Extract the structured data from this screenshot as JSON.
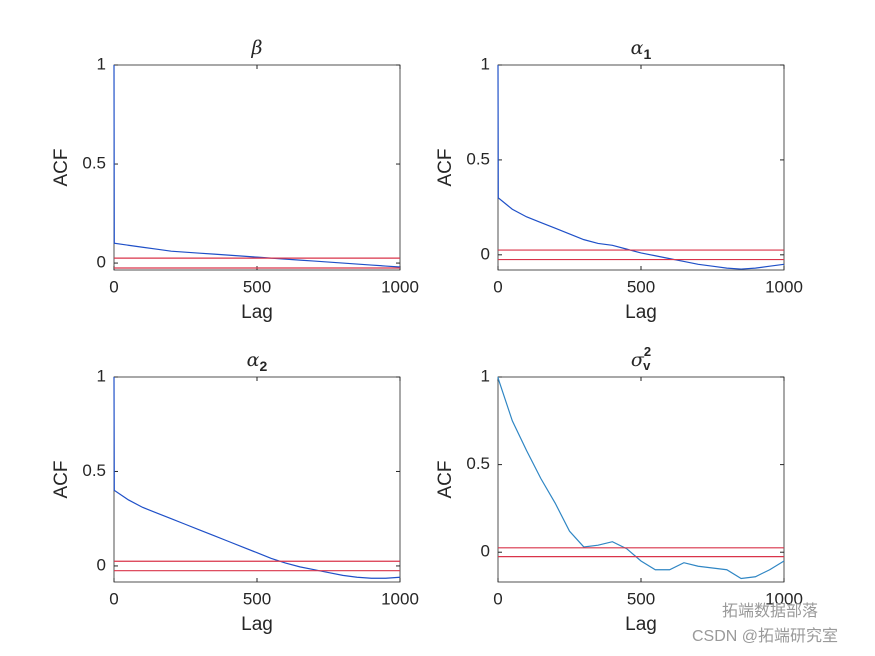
{
  "chart_data": [
    {
      "type": "line",
      "title": "β",
      "xlabel": "Lag",
      "ylabel": "ACF",
      "x": [
        0,
        1,
        50,
        100,
        150,
        200,
        250,
        300,
        350,
        400,
        450,
        500,
        550,
        600,
        650,
        700,
        750,
        800,
        850,
        900,
        950,
        1000
      ],
      "values": [
        1,
        0.1,
        0.09,
        0.08,
        0.07,
        0.06,
        0.055,
        0.05,
        0.045,
        0.04,
        0.035,
        0.03,
        0.025,
        0.02,
        0.015,
        0.01,
        0.005,
        0,
        -0.005,
        -0.01,
        -0.015,
        -0.02
      ],
      "color": "#1f50c8",
      "xlim": [
        0,
        1000
      ],
      "ylim": [
        -0.035,
        1
      ],
      "xticks": [
        0,
        500,
        1000
      ],
      "yticks": [
        0,
        0.5,
        1
      ],
      "reference_lines": [
        {
          "value": 0.025,
          "color": "#d9344a"
        },
        {
          "value": -0.025,
          "color": "#d9344a"
        }
      ]
    },
    {
      "type": "line",
      "title": "α",
      "title_sub": "1",
      "xlabel": "Lag",
      "ylabel": "ACF",
      "x": [
        0,
        1,
        50,
        100,
        150,
        200,
        250,
        300,
        350,
        400,
        450,
        500,
        550,
        600,
        650,
        700,
        750,
        800,
        850,
        900,
        950,
        1000
      ],
      "values": [
        1,
        0.3,
        0.24,
        0.2,
        0.17,
        0.14,
        0.11,
        0.08,
        0.06,
        0.05,
        0.03,
        0.01,
        -0.005,
        -0.02,
        -0.035,
        -0.05,
        -0.06,
        -0.07,
        -0.075,
        -0.07,
        -0.06,
        -0.05
      ],
      "color": "#1f50c8",
      "xlim": [
        0,
        1000
      ],
      "ylim": [
        -0.08,
        1
      ],
      "xticks": [
        0,
        500,
        1000
      ],
      "yticks": [
        0,
        0.5,
        1
      ],
      "reference_lines": [
        {
          "value": 0.025,
          "color": "#d9344a"
        },
        {
          "value": -0.025,
          "color": "#d9344a"
        }
      ]
    },
    {
      "type": "line",
      "title": "α",
      "title_sub": "2",
      "xlabel": "Lag",
      "ylabel": "ACF",
      "x": [
        0,
        1,
        50,
        100,
        150,
        200,
        250,
        300,
        350,
        400,
        450,
        500,
        550,
        600,
        650,
        700,
        750,
        800,
        850,
        900,
        950,
        1000
      ],
      "values": [
        1,
        0.4,
        0.35,
        0.31,
        0.28,
        0.25,
        0.22,
        0.19,
        0.16,
        0.13,
        0.1,
        0.07,
        0.04,
        0.015,
        -0.005,
        -0.02,
        -0.035,
        -0.05,
        -0.06,
        -0.065,
        -0.065,
        -0.06
      ],
      "color": "#1f50c8",
      "xlim": [
        0,
        1000
      ],
      "ylim": [
        -0.085,
        1
      ],
      "xticks": [
        0,
        500,
        1000
      ],
      "yticks": [
        0,
        0.5,
        1
      ],
      "reference_lines": [
        {
          "value": 0.025,
          "color": "#d9344a"
        },
        {
          "value": -0.025,
          "color": "#d9344a"
        }
      ]
    },
    {
      "type": "line",
      "title": "σ",
      "title_sub": "v",
      "title_sup": "2",
      "xlabel": "Lag",
      "ylabel": "ACF",
      "x": [
        0,
        1,
        50,
        100,
        150,
        200,
        250,
        300,
        350,
        400,
        450,
        500,
        550,
        600,
        650,
        700,
        750,
        800,
        850,
        900,
        950,
        1000
      ],
      "values": [
        1,
        0.99,
        0.75,
        0.58,
        0.42,
        0.28,
        0.12,
        0.03,
        0.04,
        0.06,
        0.02,
        -0.05,
        -0.1,
        -0.1,
        -0.06,
        -0.08,
        -0.09,
        -0.1,
        -0.15,
        -0.14,
        -0.1,
        -0.05
      ],
      "color": "#2f86c4",
      "xlim": [
        0,
        1000
      ],
      "ylim": [
        -0.17,
        1
      ],
      "xticks": [
        0,
        500,
        1000
      ],
      "yticks": [
        0,
        0.5,
        1
      ],
      "reference_lines": [
        {
          "value": 0.025,
          "color": "#d9344a"
        },
        {
          "value": -0.025,
          "color": "#d9344a"
        }
      ]
    }
  ],
  "watermark": {
    "line1": "拓端数据部落",
    "line2": "CSDN @拓端研究室"
  }
}
